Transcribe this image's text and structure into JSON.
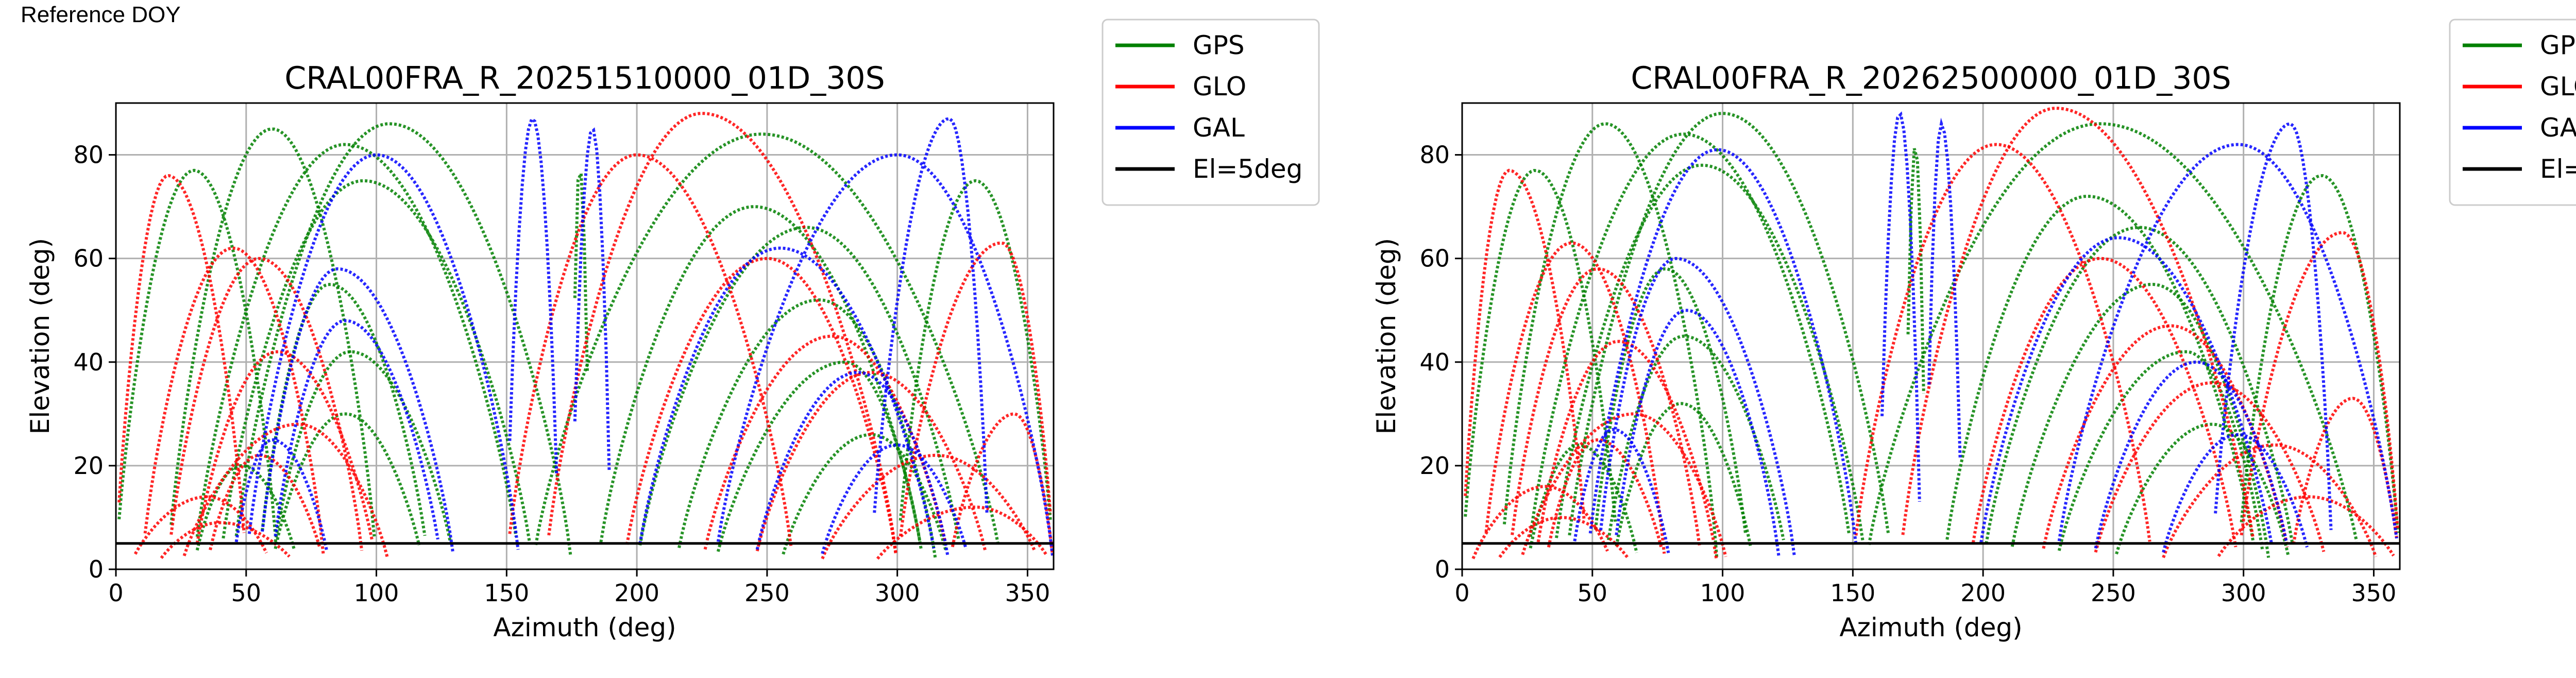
{
  "header": {
    "label": "Reference DOY"
  },
  "colors": {
    "GPS": "#008000",
    "GLO": "#ff0000",
    "GAL": "#0000ff",
    "El=5deg": "#000000",
    "grid": "#b0b0b0"
  },
  "chart_data": [
    {
      "type": "scatter",
      "title": "CRAL00FRA_R_20251510000_01D_30S",
      "xlabel": "Azimuth (deg)",
      "ylabel": "Elevation (deg)",
      "xlim": [
        0,
        360
      ],
      "ylim": [
        0,
        90
      ],
      "xticks": [
        0,
        50,
        100,
        150,
        200,
        250,
        300,
        350
      ],
      "yticks": [
        0,
        20,
        40,
        60,
        80
      ],
      "grid": true,
      "legend_position": "outside-right",
      "legend": [
        "GPS",
        "GLO",
        "GAL",
        "El=5deg"
      ],
      "reference_line": {
        "name": "El=5deg",
        "y": 5
      },
      "series": [
        {
          "name": "GPS",
          "tracks": [
            {
              "az": [
                30,
                88,
                155
              ],
              "peak_el": 82
            },
            {
              "az": [
                40,
                95,
                160
              ],
              "peak_el": 75
            },
            {
              "az": [
                45,
                105,
                175
              ],
              "peak_el": 86
            },
            {
              "az": [
                55,
                82,
                120
              ],
              "peak_el": 55
            },
            {
              "az": [
                60,
                90,
                130
              ],
              "peak_el": 42
            },
            {
              "az": [
                60,
                88,
                118
              ],
              "peak_el": 30
            },
            {
              "az": [
                30,
                48,
                70
              ],
              "peak_el": 20
            },
            {
              "az": [
                175,
                178,
                182
              ],
              "peak_el": 78
            },
            {
              "az": [
                185,
                245,
                310
              ],
              "peak_el": 70
            },
            {
              "az": [
                200,
                265,
                325
              ],
              "peak_el": 66
            },
            {
              "az": [
                215,
                270,
                315
              ],
              "peak_el": 52
            },
            {
              "az": [
                230,
                280,
                310
              ],
              "peak_el": 40
            },
            {
              "az": [
                255,
                290,
                320
              ],
              "peak_el": 26
            },
            {
              "az": [
                0,
                30,
                62
              ],
              "peak_el": 77
            },
            {
              "az": [
                300,
                330,
                360
              ],
              "peak_el": 75
            },
            {
              "az": [
                160,
                248,
                340
              ],
              "peak_el": 84
            },
            {
              "az": [
                20,
                60,
                100
              ],
              "peak_el": 85
            }
          ]
        },
        {
          "name": "GLO",
          "tracks": [
            {
              "az": [
                0,
                20,
                50
              ],
              "peak_el": 76
            },
            {
              "az": [
                10,
                45,
                80
              ],
              "peak_el": 62
            },
            {
              "az": [
                20,
                55,
                95
              ],
              "peak_el": 60
            },
            {
              "az": [
                30,
                62,
                100
              ],
              "peak_el": 42
            },
            {
              "az": [
                25,
                70,
                105
              ],
              "peak_el": 28
            },
            {
              "az": [
                5,
                35,
                60
              ],
              "peak_el": 14
            },
            {
              "az": [
                15,
                40,
                70
              ],
              "peak_el": 9
            },
            {
              "az": [
                35,
                55,
                80
              ],
              "peak_el": 22
            },
            {
              "az": [
                150,
                200,
                260
              ],
              "peak_el": 80
            },
            {
              "az": [
                195,
                250,
                300
              ],
              "peak_el": 60
            },
            {
              "az": [
                225,
                275,
                320
              ],
              "peak_el": 45
            },
            {
              "az": [
                245,
                290,
                335
              ],
              "peak_el": 38
            },
            {
              "az": [
                270,
                315,
                355
              ],
              "peak_el": 22
            },
            {
              "az": [
                290,
                330,
                360
              ],
              "peak_el": 12
            },
            {
              "az": [
                300,
                340,
                360
              ],
              "peak_el": 63
            },
            {
              "az": [
                320,
                345,
                360
              ],
              "peak_el": 30
            },
            {
              "az": [
                165,
                225,
                300
              ],
              "peak_el": 88
            }
          ]
        },
        {
          "name": "GAL",
          "tracks": [
            {
              "az": [
                50,
                100,
                155
              ],
              "peak_el": 80
            },
            {
              "az": [
                55,
                85,
                130
              ],
              "peak_el": 58
            },
            {
              "az": [
                60,
                88,
                125
              ],
              "peak_el": 48
            },
            {
              "az": [
                45,
                60,
                82
              ],
              "peak_el": 25
            },
            {
              "az": [
                150,
                160,
                170
              ],
              "peak_el": 87
            },
            {
              "az": [
                175,
                183,
                190
              ],
              "peak_el": 85
            },
            {
              "az": [
                200,
                255,
                315
              ],
              "peak_el": 62
            },
            {
              "az": [
                245,
                285,
                320
              ],
              "peak_el": 38
            },
            {
              "az": [
                270,
                300,
                328
              ],
              "peak_el": 24
            },
            {
              "az": [
                290,
                320,
                335
              ],
              "peak_el": 87
            },
            {
              "az": [
                230,
                300,
                360
              ],
              "peak_el": 80
            }
          ]
        }
      ]
    },
    {
      "type": "scatter",
      "title": "CRAL00FRA_R_20262500000_01D_30S",
      "xlabel": "Azimuth (deg)",
      "ylabel": "Elevation (deg)",
      "xlim": [
        0,
        360
      ],
      "ylim": [
        0,
        90
      ],
      "xticks": [
        0,
        50,
        100,
        150,
        200,
        250,
        300,
        350
      ],
      "yticks": [
        0,
        20,
        40,
        60,
        80
      ],
      "grid": true,
      "legend_position": "outside-right",
      "legend": [
        "GPS",
        "GLO",
        "GAL",
        "El=5deg"
      ],
      "reference_line": {
        "name": "El=5deg",
        "y": 5
      },
      "series": [
        {
          "name": "GPS",
          "tracks": [
            {
              "az": [
                25,
                85,
                150
              ],
              "peak_el": 84
            },
            {
              "az": [
                35,
                92,
                155
              ],
              "peak_el": 78
            },
            {
              "az": [
                40,
                100,
                165
              ],
              "peak_el": 88
            },
            {
              "az": [
                50,
                78,
                110
              ],
              "peak_el": 58
            },
            {
              "az": [
                55,
                85,
                125
              ],
              "peak_el": 45
            },
            {
              "az": [
                58,
                84,
                112
              ],
              "peak_el": 32
            },
            {
              "az": [
                25,
                45,
                68
              ],
              "peak_el": 24
            },
            {
              "az": [
                170,
                174,
                178
              ],
              "peak_el": 82
            },
            {
              "az": [
                185,
                240,
                305
              ],
              "peak_el": 72
            },
            {
              "az": [
                200,
                260,
                320
              ],
              "peak_el": 66
            },
            {
              "az": [
                210,
                265,
                310
              ],
              "peak_el": 55
            },
            {
              "az": [
                228,
                278,
                308
              ],
              "peak_el": 42
            },
            {
              "az": [
                250,
                288,
                318
              ],
              "peak_el": 28
            },
            {
              "az": [
                0,
                28,
                60
              ],
              "peak_el": 77
            },
            {
              "az": [
                298,
                330,
                360
              ],
              "peak_el": 76
            },
            {
              "az": [
                155,
                245,
                345
              ],
              "peak_el": 86
            },
            {
              "az": [
                15,
                55,
                98
              ],
              "peak_el": 86
            }
          ]
        },
        {
          "name": "GLO",
          "tracks": [
            {
              "az": [
                0,
                18,
                48
              ],
              "peak_el": 77
            },
            {
              "az": [
                8,
                42,
                78
              ],
              "peak_el": 63
            },
            {
              "az": [
                18,
                52,
                92
              ],
              "peak_el": 58
            },
            {
              "az": [
                28,
                60,
                98
              ],
              "peak_el": 44
            },
            {
              "az": [
                22,
                66,
                102
              ],
              "peak_el": 30
            },
            {
              "az": [
                3,
                32,
                58
              ],
              "peak_el": 16
            },
            {
              "az": [
                12,
                38,
                66
              ],
              "peak_el": 10
            },
            {
              "az": [
                32,
                52,
                78
              ],
              "peak_el": 25
            },
            {
              "az": [
                150,
                205,
                265
              ],
              "peak_el": 82
            },
            {
              "az": [
                195,
                245,
                298
              ],
              "peak_el": 60
            },
            {
              "az": [
                222,
                272,
                318
              ],
              "peak_el": 47
            },
            {
              "az": [
                242,
                288,
                332
              ],
              "peak_el": 36
            },
            {
              "az": [
                268,
                312,
                352
              ],
              "peak_el": 24
            },
            {
              "az": [
                288,
                325,
                360
              ],
              "peak_el": 14
            },
            {
              "az": [
                298,
                338,
                360
              ],
              "peak_el": 65
            },
            {
              "az": [
                318,
                342,
                360
              ],
              "peak_el": 33
            },
            {
              "az": [
                168,
                228,
                305
              ],
              "peak_el": 89
            }
          ]
        },
        {
          "name": "GAL",
          "tracks": [
            {
              "az": [
                48,
                98,
                152
              ],
              "peak_el": 81
            },
            {
              "az": [
                52,
                82,
                128
              ],
              "peak_el": 60
            },
            {
              "az": [
                58,
                86,
                122
              ],
              "peak_el": 50
            },
            {
              "az": [
                42,
                58,
                80
              ],
              "peak_el": 27
            },
            {
              "az": [
                160,
                168,
                176
              ],
              "peak_el": 88
            },
            {
              "az": [
                178,
                184,
                192
              ],
              "peak_el": 86
            },
            {
              "az": [
                198,
                252,
                312
              ],
              "peak_el": 64
            },
            {
              "az": [
                242,
                282,
                318
              ],
              "peak_el": 40
            },
            {
              "az": [
                268,
                298,
                326
              ],
              "peak_el": 26
            },
            {
              "az": [
                288,
                318,
                334
              ],
              "peak_el": 86
            },
            {
              "az": [
                228,
                298,
                360
              ],
              "peak_el": 82
            }
          ]
        }
      ]
    }
  ]
}
